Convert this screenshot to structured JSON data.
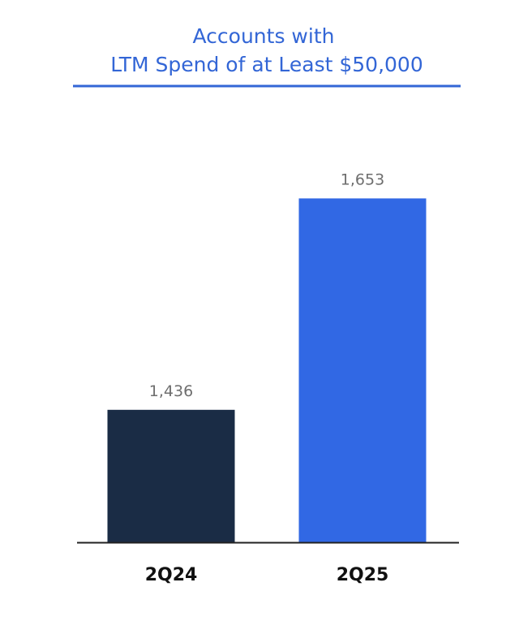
{
  "chart_data": {
    "type": "bar",
    "title_lines": [
      "Accounts with",
      "LTM Spend of at Least $50,000"
    ],
    "categories": [
      "2Q24",
      "2Q25"
    ],
    "values": [
      1436,
      1653
    ],
    "value_labels": [
      "1,436",
      "1,653"
    ],
    "xlabel": "",
    "ylabel": "",
    "ylim": [
      1300,
      1700
    ],
    "grid": false,
    "legend": "none",
    "colors": {
      "title": "#3366d6",
      "title_rule": "#3366d6",
      "bars": [
        "#1a2c45",
        "#3168e4"
      ],
      "value_label": "#6e6e6e",
      "category_label": "#111111",
      "axis": "#222222"
    }
  }
}
